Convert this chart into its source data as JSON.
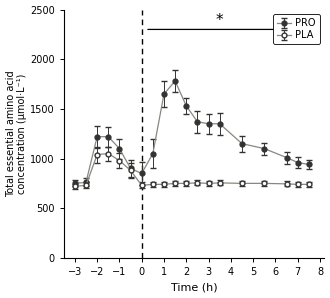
{
  "PRO_x": [
    -3,
    -2.5,
    -2,
    -1.5,
    -1,
    -0.5,
    0,
    0.5,
    1,
    1.5,
    2,
    2.5,
    3,
    3.5,
    4.5,
    5.5,
    6.5,
    7,
    7.5
  ],
  "PRO_y": [
    750,
    760,
    1220,
    1220,
    1100,
    900,
    850,
    1050,
    1650,
    1780,
    1530,
    1370,
    1350,
    1350,
    1150,
    1100,
    1010,
    960,
    940
  ],
  "PRO_yerr": [
    30,
    40,
    110,
    100,
    100,
    90,
    120,
    150,
    130,
    110,
    80,
    110,
    100,
    110,
    80,
    60,
    60,
    60,
    50
  ],
  "PLA_x": [
    -3,
    -2.5,
    -2,
    -1.5,
    -1,
    -0.5,
    0,
    0.5,
    1,
    1.5,
    2,
    2.5,
    3,
    3.5,
    4.5,
    5.5,
    6.5,
    7,
    7.5
  ],
  "PLA_y": [
    720,
    730,
    1040,
    1050,
    980,
    880,
    730,
    740,
    740,
    750,
    750,
    755,
    750,
    755,
    750,
    750,
    745,
    740,
    740
  ],
  "PLA_yerr": [
    25,
    30,
    80,
    70,
    80,
    80,
    30,
    25,
    25,
    25,
    25,
    25,
    25,
    25,
    25,
    25,
    25,
    25,
    25
  ],
  "xlabel": "Time (h)",
  "ylabel": "Total essential amino acid\nconcentration (μmol·L⁻¹)",
  "xlim": [
    -3.5,
    8.2
  ],
  "ylim": [
    0,
    2500
  ],
  "yticks": [
    0,
    500,
    1000,
    1500,
    2000,
    2500
  ],
  "xticks": [
    -3,
    -2,
    -1,
    0,
    1,
    2,
    3,
    4,
    5,
    6,
    7,
    8
  ],
  "vline_x": 0,
  "sig_line_x1": 0.15,
  "sig_line_x2": 7.8,
  "sig_line_y": 2300,
  "sig_star_x": 3.5,
  "sig_star_y": 2310,
  "line_color": "#888880",
  "marker_color": "#333333",
  "background_color": "#ffffff",
  "legend_PRO": "PRO",
  "legend_PLA": "PLA"
}
